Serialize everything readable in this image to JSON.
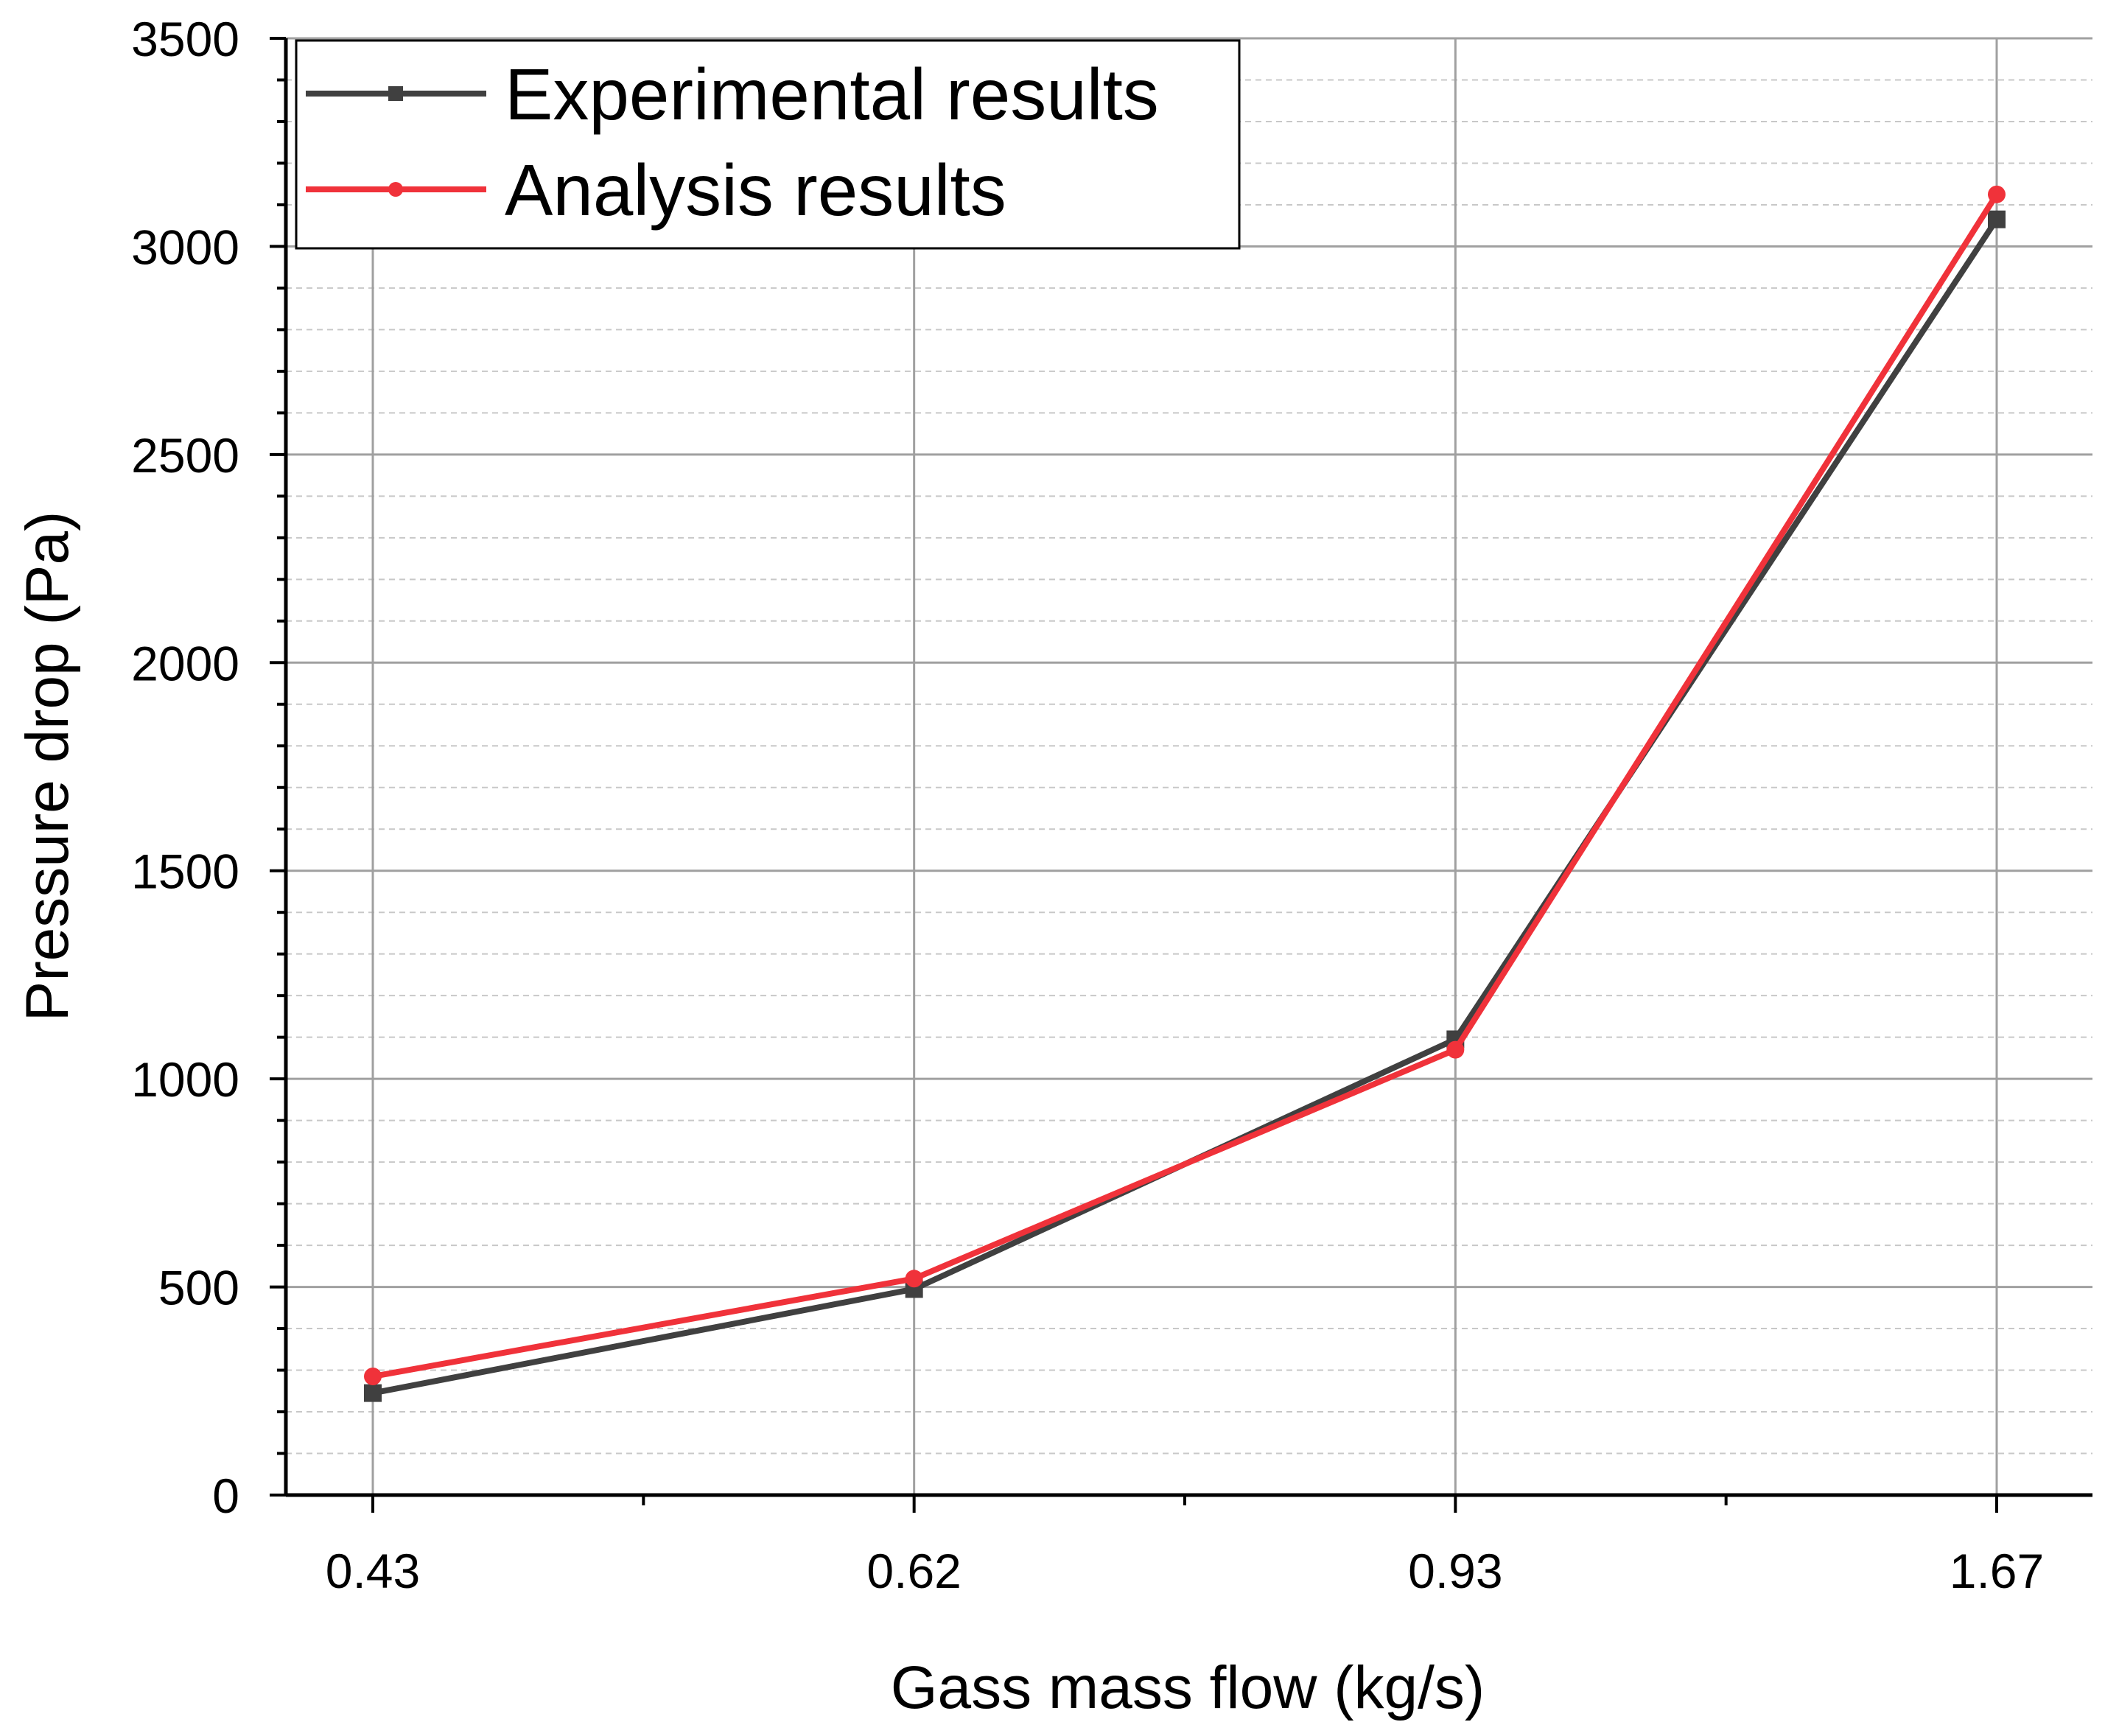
{
  "chart_data": {
    "type": "line",
    "title": "",
    "xlabel": "Gass mass flow (kg/s)",
    "ylabel": "Pressure drop (Pa)",
    "categories": [
      "0.43",
      "0.62",
      "0.93",
      "1.67"
    ],
    "ylim": [
      0,
      3500
    ],
    "yticks": [
      "0",
      "500",
      "1000",
      "1500",
      "2000",
      "2500",
      "3000",
      "3500"
    ],
    "grid": true,
    "legend_position": "top-left",
    "series": [
      {
        "name": "Experimental results",
        "color": "#404040",
        "marker": "square",
        "values": [
          245,
          495,
          1095,
          3065
        ]
      },
      {
        "name": "Analysis results",
        "color": "#f0323a",
        "marker": "circle",
        "values": [
          285,
          520,
          1070,
          3125
        ]
      }
    ]
  }
}
